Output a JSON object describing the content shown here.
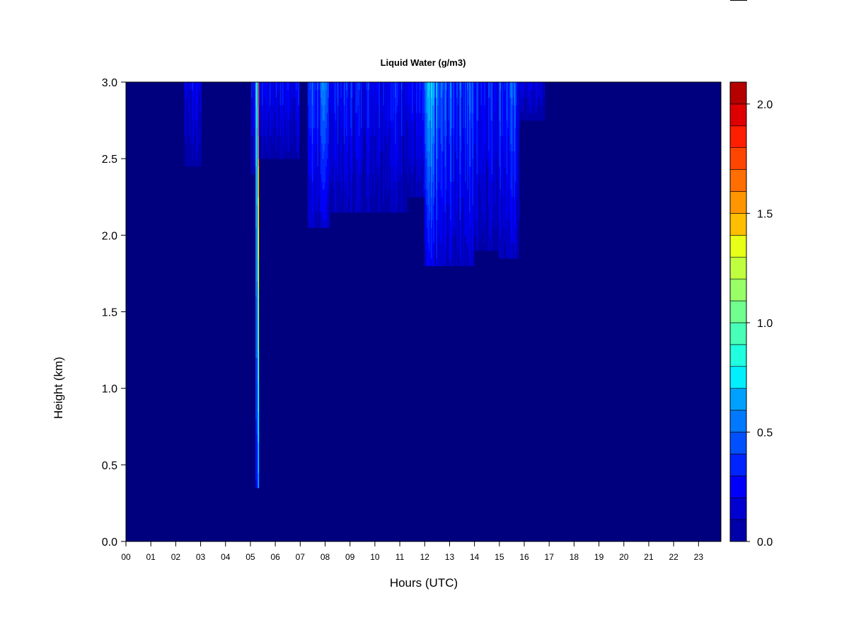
{
  "chart_data": {
    "type": "heatmap",
    "title": "Liquid Water (g/m3)",
    "xlabel": "Hours (UTC)",
    "ylabel": "Height (km)",
    "xlim": [
      0,
      23.9
    ],
    "ylim": [
      0,
      3.0
    ],
    "x_ticks": [
      "00",
      "01",
      "02",
      "03",
      "04",
      "05",
      "06",
      "07",
      "08",
      "09",
      "10",
      "11",
      "12",
      "13",
      "14",
      "15",
      "16",
      "17",
      "18",
      "19",
      "20",
      "21",
      "22",
      "23"
    ],
    "y_ticks": [
      "0.0",
      "0.5",
      "1.0",
      "1.5",
      "2.0",
      "2.5",
      "3.0"
    ],
    "colorbar": {
      "min": 0.0,
      "max": 2.1,
      "step": 0.1,
      "ticks": [
        "0.0",
        "0.5",
        "1.0",
        "1.5",
        "2.0"
      ],
      "colors": [
        "#00007F",
        "#0000A8",
        "#0000D1",
        "#0000FA",
        "#0024FF",
        "#0050FF",
        "#0078FF",
        "#00A0FF",
        "#00C8FF",
        "#00F0FF",
        "#20FFDF",
        "#48FFB7",
        "#70FF8F",
        "#98FF67",
        "#C0FF3F",
        "#E8FF17",
        "#FFE600",
        "#FFBE00",
        "#FF9600",
        "#FF6E00",
        "#FF4600",
        "#FF1E00",
        "#DE0000",
        "#B50000",
        "#7F0000"
      ]
    },
    "cloud_events": [
      {
        "t0": 2.35,
        "t1": 3.05,
        "base_km": 2.45,
        "peak": 0.35
      },
      {
        "t0": 5.05,
        "t1": 5.35,
        "base_km": 2.4,
        "peak": 0.45
      },
      {
        "t0": 5.22,
        "t1": 5.32,
        "base_km": 0.35,
        "peak": 1.85
      },
      {
        "t0": 5.35,
        "t1": 6.95,
        "base_km": 2.5,
        "peak": 0.4
      },
      {
        "t0": 7.3,
        "t1": 8.2,
        "base_km": 2.05,
        "peak": 0.6
      },
      {
        "t0": 8.2,
        "t1": 11.3,
        "base_km": 2.15,
        "peak": 0.45
      },
      {
        "t0": 11.3,
        "t1": 12.0,
        "base_km": 2.25,
        "peak": 0.4
      },
      {
        "t0": 12.0,
        "t1": 12.5,
        "base_km": 1.8,
        "peak": 0.8
      },
      {
        "t0": 12.5,
        "t1": 13.3,
        "base_km": 1.8,
        "peak": 0.6
      },
      {
        "t0": 13.3,
        "t1": 14.0,
        "base_km": 1.8,
        "peak": 0.6
      },
      {
        "t0": 14.0,
        "t1": 15.0,
        "base_km": 1.9,
        "peak": 0.5
      },
      {
        "t0": 15.0,
        "t1": 15.8,
        "base_km": 1.85,
        "peak": 0.55
      },
      {
        "t0": 15.8,
        "t1": 16.8,
        "base_km": 2.75,
        "peak": 0.3
      }
    ]
  }
}
